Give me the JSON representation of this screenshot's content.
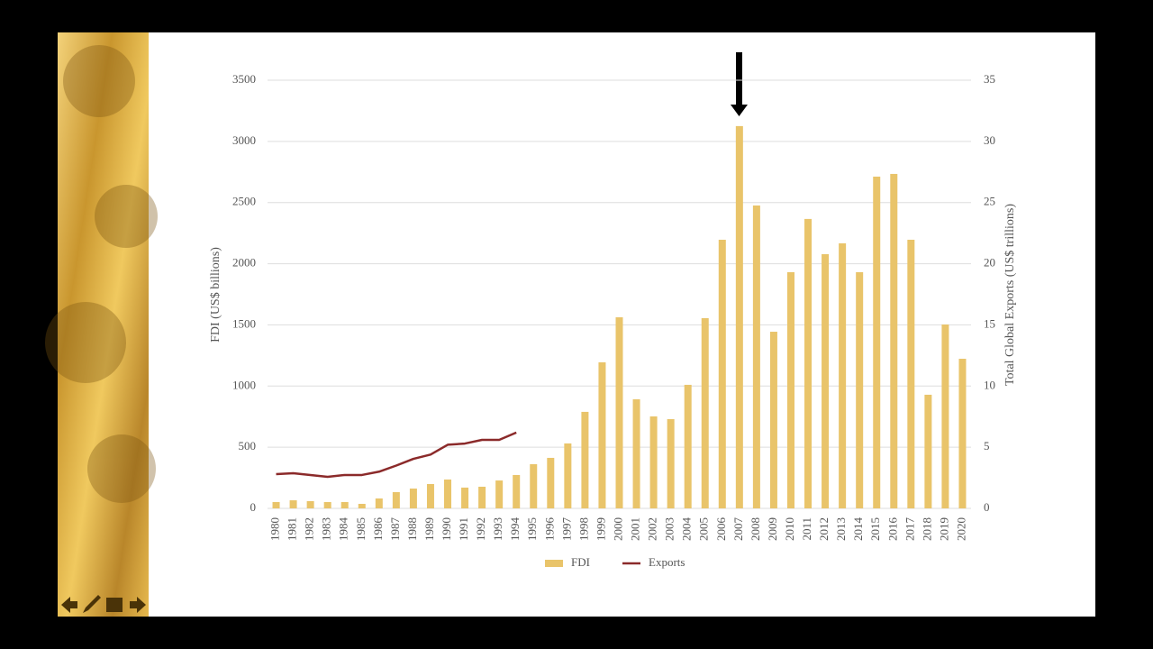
{
  "chart_data": {
    "type": "bar",
    "categories": [
      "1980",
      "1981",
      "1982",
      "1983",
      "1984",
      "1985",
      "1986",
      "1987",
      "1988",
      "1989",
      "1990",
      "1991",
      "1992",
      "1993",
      "1994",
      "1995",
      "1996",
      "1997",
      "1998",
      "1999",
      "2000",
      "2001",
      "2002",
      "2003",
      "2004",
      "2005",
      "2006",
      "2007",
      "2008",
      "2009",
      "2010",
      "2011",
      "2012",
      "2013",
      "2014",
      "2015",
      "2016",
      "2017",
      "2018",
      "2019",
      "2020"
    ],
    "series": [
      {
        "name": "FDI",
        "color": "#e9c46a",
        "values": [
          52,
          66,
          59,
          52,
          52,
          37,
          81,
          133,
          162,
          199,
          236,
          170,
          177,
          228,
          273,
          361,
          413,
          531,
          789,
          1194,
          1562,
          892,
          752,
          730,
          1010,
          1555,
          2196,
          3125,
          2476,
          1444,
          1931,
          2366,
          2078,
          2167,
          1931,
          2712,
          2734,
          2196,
          929,
          1503,
          1223
        ]
      },
      {
        "name": "Exports",
        "color": "#8b2a2a",
        "type": "line",
        "axis": "y2",
        "values": [
          2.8,
          2.87,
          2.73,
          2.58,
          2.73,
          2.73,
          3.0,
          3.5,
          4.05,
          4.4,
          5.2,
          5.3,
          5.6,
          5.6,
          6.2,
          null,
          null,
          null,
          null,
          null,
          null,
          null,
          null,
          null,
          null,
          null,
          null,
          null,
          null,
          null,
          null,
          null,
          null,
          null,
          null,
          null,
          null,
          null,
          null,
          null,
          null
        ]
      }
    ],
    "y_label": "FDI (US$ billions)",
    "y2_label": "Total Global Exports (US$ trillions)",
    "ylim": [
      0,
      3500
    ],
    "yticks": [
      0,
      500,
      1000,
      1500,
      2000,
      2500,
      3000,
      3500
    ],
    "y2lim": [
      0,
      35
    ],
    "y2ticks": [
      0,
      5,
      10,
      15,
      20,
      25,
      30,
      35
    ],
    "grid": true
  }
}
